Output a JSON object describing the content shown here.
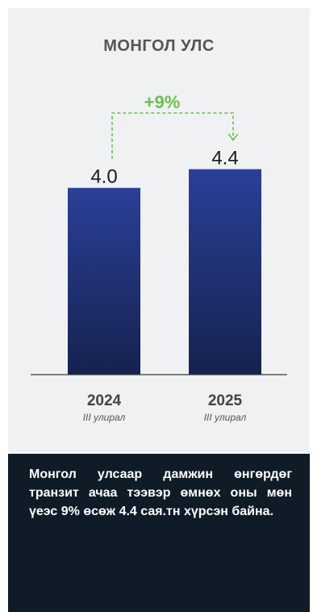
{
  "panel": {
    "title": "МОНГОЛ УЛС",
    "caption": "Монгол улсаар дамжин өнгөрдөг транзит ачаа тээвэр өмнөх оны мөн үеэс 9% өсөж 4.4 сая.тн хүрсэн байна."
  },
  "colors": {
    "bar_top": "#2b3f97",
    "bar_bottom": "#15224f",
    "growth": "#6cc04a",
    "panel_bg": "#f0f1f3",
    "caption_bg": "#0f1c28"
  },
  "chart_data": {
    "type": "bar",
    "categories": [
      "2024",
      "2025"
    ],
    "category_sublabels": [
      "III улирал",
      "III улирал"
    ],
    "values": [
      4.0,
      4.4
    ],
    "value_labels": [
      "4.0",
      "4.4"
    ],
    "ylim": [
      0,
      4.6
    ],
    "growth_label": "+9%",
    "grid": false
  }
}
